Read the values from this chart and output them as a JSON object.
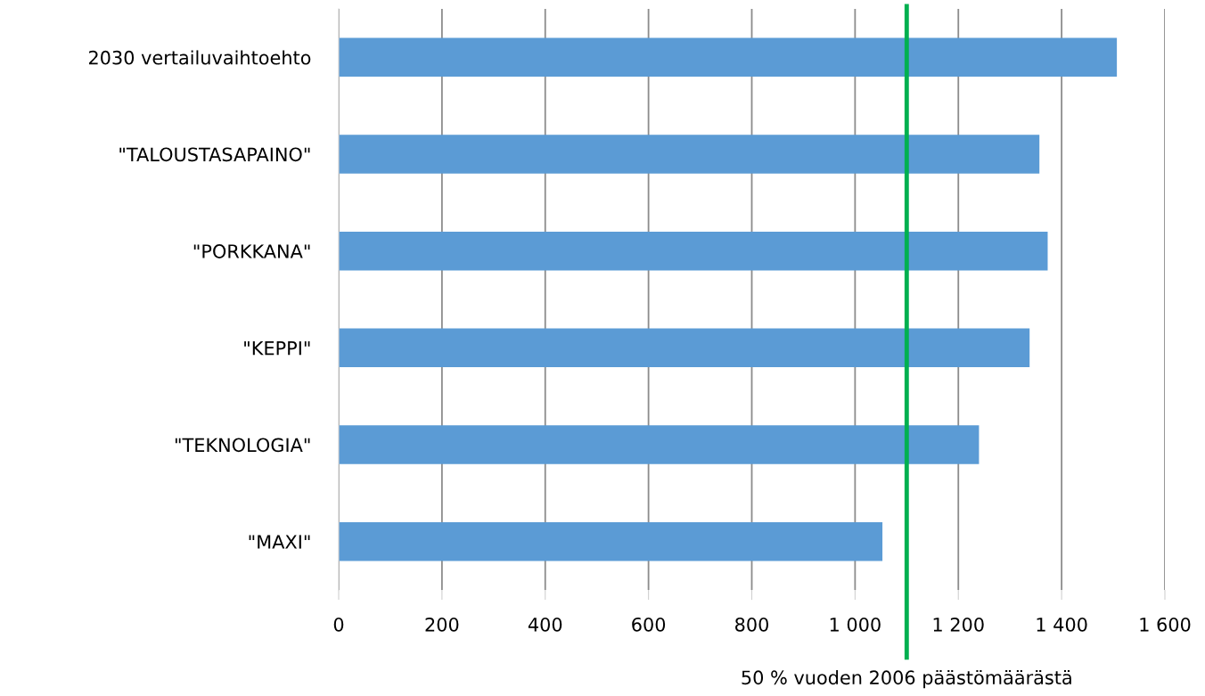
{
  "chart_data": {
    "type": "bar",
    "orientation": "horizontal",
    "categories": [
      "2030 vertailuvaihtoehto",
      "\"TALOUSTASAPAINO\"",
      "\"PORKKANA\"",
      "\"KEPPI\"",
      "\"TEKNOLOGIA\"",
      "\"MAXI\""
    ],
    "values": [
      1507,
      1357,
      1373,
      1338,
      1240,
      1053
    ],
    "color": "#5b9bd5",
    "xlim": [
      0,
      1600
    ],
    "xticks": [
      0,
      200,
      400,
      600,
      800,
      {
        "value": 1000,
        "label": "1 000"
      },
      {
        "value": 1200,
        "label": "1 200"
      },
      {
        "value": 1400,
        "label": "1 400"
      },
      {
        "value": 1600,
        "label": "1 600"
      }
    ],
    "grid": "x",
    "ref_lines": [
      {
        "axis": "x",
        "value": 1100,
        "label": "50 % vuoden 2006 päästömäärästä",
        "color": "#00b050",
        "line_style": "solid"
      }
    ]
  }
}
